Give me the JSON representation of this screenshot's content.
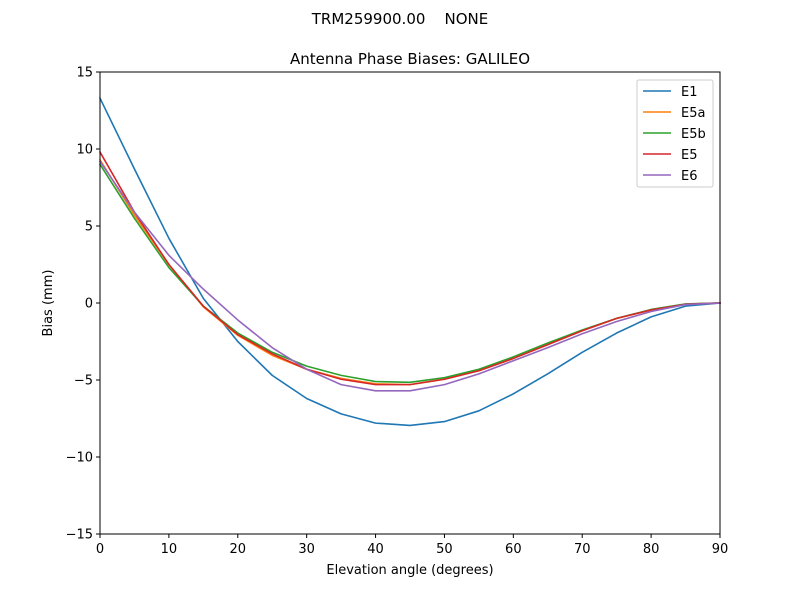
{
  "figure": {
    "suptitle": "TRM259900.00    NONE"
  },
  "chart_data": {
    "type": "line",
    "title": "Antenna Phase Biases: GALILEO",
    "xlabel": "Elevation angle (degrees)",
    "ylabel": "Bias (mm)",
    "xlim": [
      0,
      90
    ],
    "ylim": [
      -15,
      15
    ],
    "xticks": [
      0,
      10,
      20,
      30,
      40,
      50,
      60,
      70,
      80,
      90
    ],
    "yticks": [
      -15,
      -10,
      -5,
      0,
      5,
      10,
      15
    ],
    "xtick_labels": [
      "0",
      "10",
      "20",
      "30",
      "40",
      "50",
      "60",
      "70",
      "80",
      "90"
    ],
    "ytick_labels": [
      "−15",
      "−10",
      "−5",
      "0",
      "5",
      "10",
      "15"
    ],
    "grid": false,
    "legend_position": "top-right",
    "x": [
      0,
      5,
      10,
      15,
      20,
      25,
      30,
      35,
      40,
      45,
      50,
      55,
      60,
      65,
      70,
      75,
      80,
      85,
      90
    ],
    "series": [
      {
        "name": "E1",
        "color": "#1f77b4",
        "values": [
          13.3,
          8.7,
          4.2,
          0.3,
          -2.5,
          -4.7,
          -6.2,
          -7.2,
          -7.8,
          -7.95,
          -7.7,
          -7.0,
          -5.9,
          -4.6,
          -3.2,
          -1.95,
          -0.9,
          -0.2,
          0.0
        ]
      },
      {
        "name": "E5a",
        "color": "#ff7f0e",
        "values": [
          9.3,
          5.7,
          2.5,
          -0.25,
          -2.1,
          -3.4,
          -4.3,
          -4.9,
          -5.25,
          -5.3,
          -4.95,
          -4.4,
          -3.6,
          -2.7,
          -1.8,
          -1.0,
          -0.45,
          -0.08,
          0.0
        ]
      },
      {
        "name": "E5b",
        "color": "#2ca02c",
        "values": [
          9.0,
          5.5,
          2.3,
          -0.2,
          -1.95,
          -3.2,
          -4.1,
          -4.7,
          -5.1,
          -5.15,
          -4.85,
          -4.3,
          -3.5,
          -2.6,
          -1.75,
          -1.0,
          -0.42,
          -0.06,
          0.0
        ]
      },
      {
        "name": "E5",
        "color": "#d62728",
        "values": [
          9.8,
          5.9,
          2.5,
          -0.2,
          -2.05,
          -3.3,
          -4.3,
          -4.95,
          -5.3,
          -5.3,
          -4.95,
          -4.4,
          -3.6,
          -2.7,
          -1.8,
          -1.0,
          -0.45,
          -0.08,
          0.0
        ]
      },
      {
        "name": "E6",
        "color": "#9467bd",
        "values": [
          9.2,
          5.9,
          3.1,
          0.9,
          -1.1,
          -2.9,
          -4.3,
          -5.3,
          -5.7,
          -5.7,
          -5.3,
          -4.6,
          -3.75,
          -2.9,
          -2.0,
          -1.2,
          -0.55,
          -0.1,
          0.0
        ]
      }
    ]
  }
}
